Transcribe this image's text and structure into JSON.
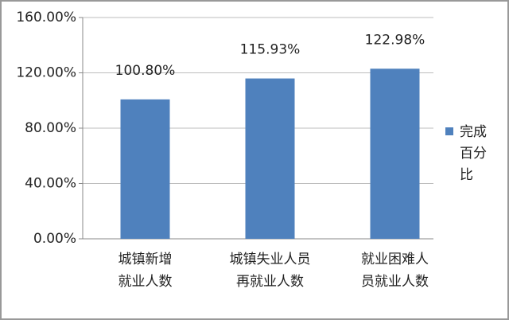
{
  "chart_data": {
    "type": "bar",
    "categories": [
      "城镇新增\n就业人数",
      "城镇失业人员\n再就业人数",
      "就业困难人\n员就业人数"
    ],
    "series": [
      {
        "name": "完成百分比",
        "color": "#4f81bd",
        "values": [
          100.8,
          115.93,
          122.98
        ],
        "value_labels": [
          "100.80%",
          "115.93%",
          "122.98%"
        ]
      }
    ],
    "ylim": [
      0,
      160
    ],
    "yticks": [
      {
        "value": 0,
        "label": "0.00%"
      },
      {
        "value": 40,
        "label": "40.00%"
      },
      {
        "value": 80,
        "label": "80.00%"
      },
      {
        "value": 120,
        "label": "120.00%"
      },
      {
        "value": 160,
        "label": "160.00%"
      }
    ],
    "grid": true,
    "legend": "right"
  }
}
